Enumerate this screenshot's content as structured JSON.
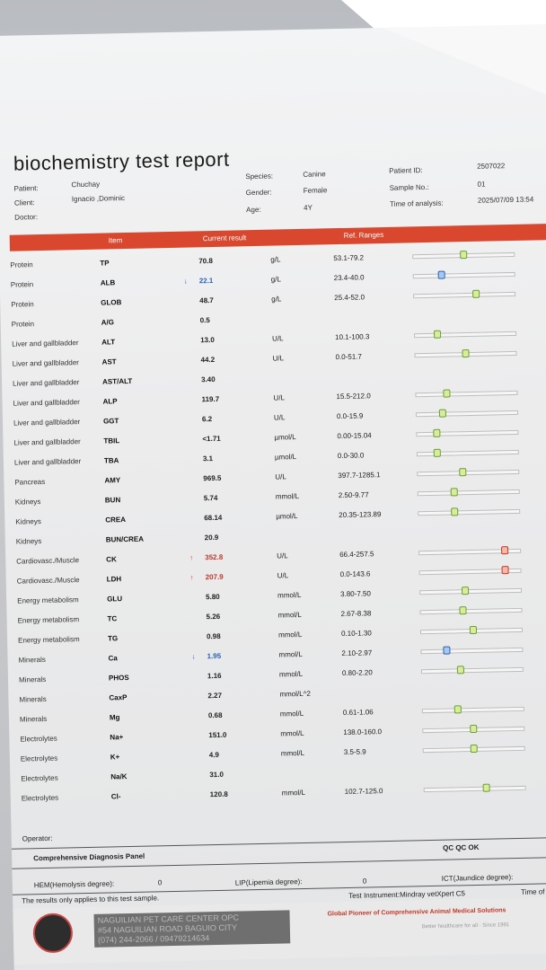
{
  "report": {
    "title": "biochemistry test report",
    "patient_label": "Patient:",
    "patient": "Chuchay",
    "client_label": "Client:",
    "client": "Ignacio ,Dominic",
    "doctor_label": "Doctor:",
    "species_label": "Species:",
    "species": "Canine",
    "gender_label": "Gender:",
    "gender": "Female",
    "age_label": "Age:",
    "age": "4Y",
    "patient_id_label": "Patient ID:",
    "patient_id": "2507022",
    "sample_no_label": "Sample No.:",
    "sample_no": "01",
    "time_label": "Time of analysis:",
    "time": "2025/07/09 13:54"
  },
  "columns": {
    "item": "Item",
    "result": "Current result",
    "ranges": "Ref. Ranges"
  },
  "rows": [
    {
      "section": "Protein",
      "item": "TP",
      "flag": "",
      "value": "70.8",
      "unit": "g/L",
      "range": "53.1-79.2",
      "level": 0.5,
      "status": "normal"
    },
    {
      "section": "Protein",
      "item": "ALB",
      "flag": "↓",
      "value": "22.1",
      "unit": "g/L",
      "range": "23.4-40.0",
      "level": 0.28,
      "status": "low"
    },
    {
      "section": "Protein",
      "item": "GLOB",
      "flag": "",
      "value": "48.7",
      "unit": "g/L",
      "range": "25.4-52.0",
      "level": 0.62,
      "status": "normal"
    },
    {
      "section": "Protein",
      "item": "A/G",
      "flag": "",
      "value": "0.5",
      "unit": "",
      "range": "",
      "level": null,
      "status": "normal"
    },
    {
      "section": "Liver and gallbladder",
      "item": "ALT",
      "flag": "",
      "value": "13.0",
      "unit": "U/L",
      "range": "10.1-100.3",
      "level": 0.22,
      "status": "normal"
    },
    {
      "section": "Liver and gallbladder",
      "item": "AST",
      "flag": "",
      "value": "44.2",
      "unit": "U/L",
      "range": "0.0-51.7",
      "level": 0.5,
      "status": "normal"
    },
    {
      "section": "Liver and gallbladder",
      "item": "AST/ALT",
      "flag": "",
      "value": "3.40",
      "unit": "",
      "range": "",
      "level": null,
      "status": "normal"
    },
    {
      "section": "Liver and gallbladder",
      "item": "ALP",
      "flag": "",
      "value": "119.7",
      "unit": "U/L",
      "range": "15.5-212.0",
      "level": 0.3,
      "status": "normal"
    },
    {
      "section": "Liver and gallbladder",
      "item": "GGT",
      "flag": "",
      "value": "6.2",
      "unit": "U/L",
      "range": "0.0-15.9",
      "level": 0.26,
      "status": "normal"
    },
    {
      "section": "Liver and gallbladder",
      "item": "TBIL",
      "flag": "",
      "value": "<1.71",
      "unit": "µmol/L",
      "range": "0.00-15.04",
      "level": 0.2,
      "status": "normal"
    },
    {
      "section": "Liver and gallbladder",
      "item": "TBA",
      "flag": "",
      "value": "3.1",
      "unit": "µmol/L",
      "range": "0.0-30.0",
      "level": 0.2,
      "status": "normal"
    },
    {
      "section": "Pancreas",
      "item": "AMY",
      "flag": "",
      "value": "969.5",
      "unit": "U/L",
      "range": "397.7-1285.1",
      "level": 0.45,
      "status": "normal"
    },
    {
      "section": "Kidneys",
      "item": "BUN",
      "flag": "",
      "value": "5.74",
      "unit": "mmol/L",
      "range": "2.50-9.77",
      "level": 0.36,
      "status": "normal"
    },
    {
      "section": "Kidneys",
      "item": "CREA",
      "flag": "",
      "value": "68.14",
      "unit": "µmol/L",
      "range": "20.35-123.89",
      "level": 0.36,
      "status": "normal"
    },
    {
      "section": "Kidneys",
      "item": "BUN/CREA",
      "flag": "",
      "value": "20.9",
      "unit": "",
      "range": "",
      "level": null,
      "status": "normal"
    },
    {
      "section": "Cardiovasc./Muscle",
      "item": "CK",
      "flag": "↑",
      "value": "352.8",
      "unit": "U/L",
      "range": "66.4-257.5",
      "level": 0.85,
      "status": "high"
    },
    {
      "section": "Cardiovasc./Muscle",
      "item": "LDH",
      "flag": "↑",
      "value": "207.9",
      "unit": "U/L",
      "range": "0.0-143.6",
      "level": 0.85,
      "status": "high"
    },
    {
      "section": "Energy metabolism",
      "item": "GLU",
      "flag": "",
      "value": "5.80",
      "unit": "mmol/L",
      "range": "3.80-7.50",
      "level": 0.45,
      "status": "normal"
    },
    {
      "section": "Energy metabolism",
      "item": "TC",
      "flag": "",
      "value": "5.26",
      "unit": "mmol/L",
      "range": "2.67-8.38",
      "level": 0.42,
      "status": "normal"
    },
    {
      "section": "Energy metabolism",
      "item": "TG",
      "flag": "",
      "value": "0.98",
      "unit": "mmol/L",
      "range": "0.10-1.30",
      "level": 0.52,
      "status": "normal"
    },
    {
      "section": "Minerals",
      "item": "Ca",
      "flag": "↓",
      "value": "1.95",
      "unit": "mmol/L",
      "range": "2.10-2.97",
      "level": 0.25,
      "status": "low"
    },
    {
      "section": "Minerals",
      "item": "PHOS",
      "flag": "",
      "value": "1.16",
      "unit": "mmol/L",
      "range": "0.80-2.20",
      "level": 0.38,
      "status": "normal"
    },
    {
      "section": "Minerals",
      "item": "CaxP",
      "flag": "",
      "value": "2.27",
      "unit": "mmol/L^2",
      "range": "",
      "level": null,
      "status": "normal"
    },
    {
      "section": "Minerals",
      "item": "Mg",
      "flag": "",
      "value": "0.68",
      "unit": "mmol/L",
      "range": "0.61-1.06",
      "level": 0.35,
      "status": "normal"
    },
    {
      "section": "Electrolytes",
      "item": "Na+",
      "flag": "",
      "value": "151.0",
      "unit": "mmol/L",
      "range": "138.0-160.0",
      "level": 0.5,
      "status": "normal"
    },
    {
      "section": "Electrolytes",
      "item": "K+",
      "flag": "",
      "value": "4.9",
      "unit": "mmol/L",
      "range": "3.5-5.9",
      "level": 0.5,
      "status": "normal"
    },
    {
      "section": "Electrolytes",
      "item": "Na/K",
      "flag": "",
      "value": "31.0",
      "unit": "",
      "range": "",
      "level": null,
      "status": "normal"
    },
    {
      "section": "Electrolytes",
      "item": "Cl-",
      "flag": "",
      "value": "120.8",
      "unit": "mmol/L",
      "range": "102.7-125.0",
      "level": 0.62,
      "status": "normal"
    }
  ],
  "footer": {
    "operator_label": "Operator:",
    "panel_title": "Comprehensive Diagnosis Panel",
    "qc": "QC QC OK",
    "hem_label": "HEM(Hemolysis degree):",
    "hem_value": "0",
    "lip_label": "LIP(Lipemia degree):",
    "lip_value": "0",
    "ict_label": "ICT(Jaundice degree):",
    "disclaimer": "The results only applies to this test sample.",
    "instrument": "Test Instrument:Mindray vetXpert C5",
    "time_of_print": "Time of Pri",
    "clinic_name": "NAGUILIAN PET CARE CENTER OPC",
    "clinic_address": "#54 NAGUILIAN ROAD BAGUIO CITY",
    "clinic_phone": "(074) 244-2066 / 09479214634",
    "pioneer": "Global Pioneer of Comprehensive Animal Medical Solutions",
    "tagline": "Better healthcare for all · Since 1991"
  }
}
